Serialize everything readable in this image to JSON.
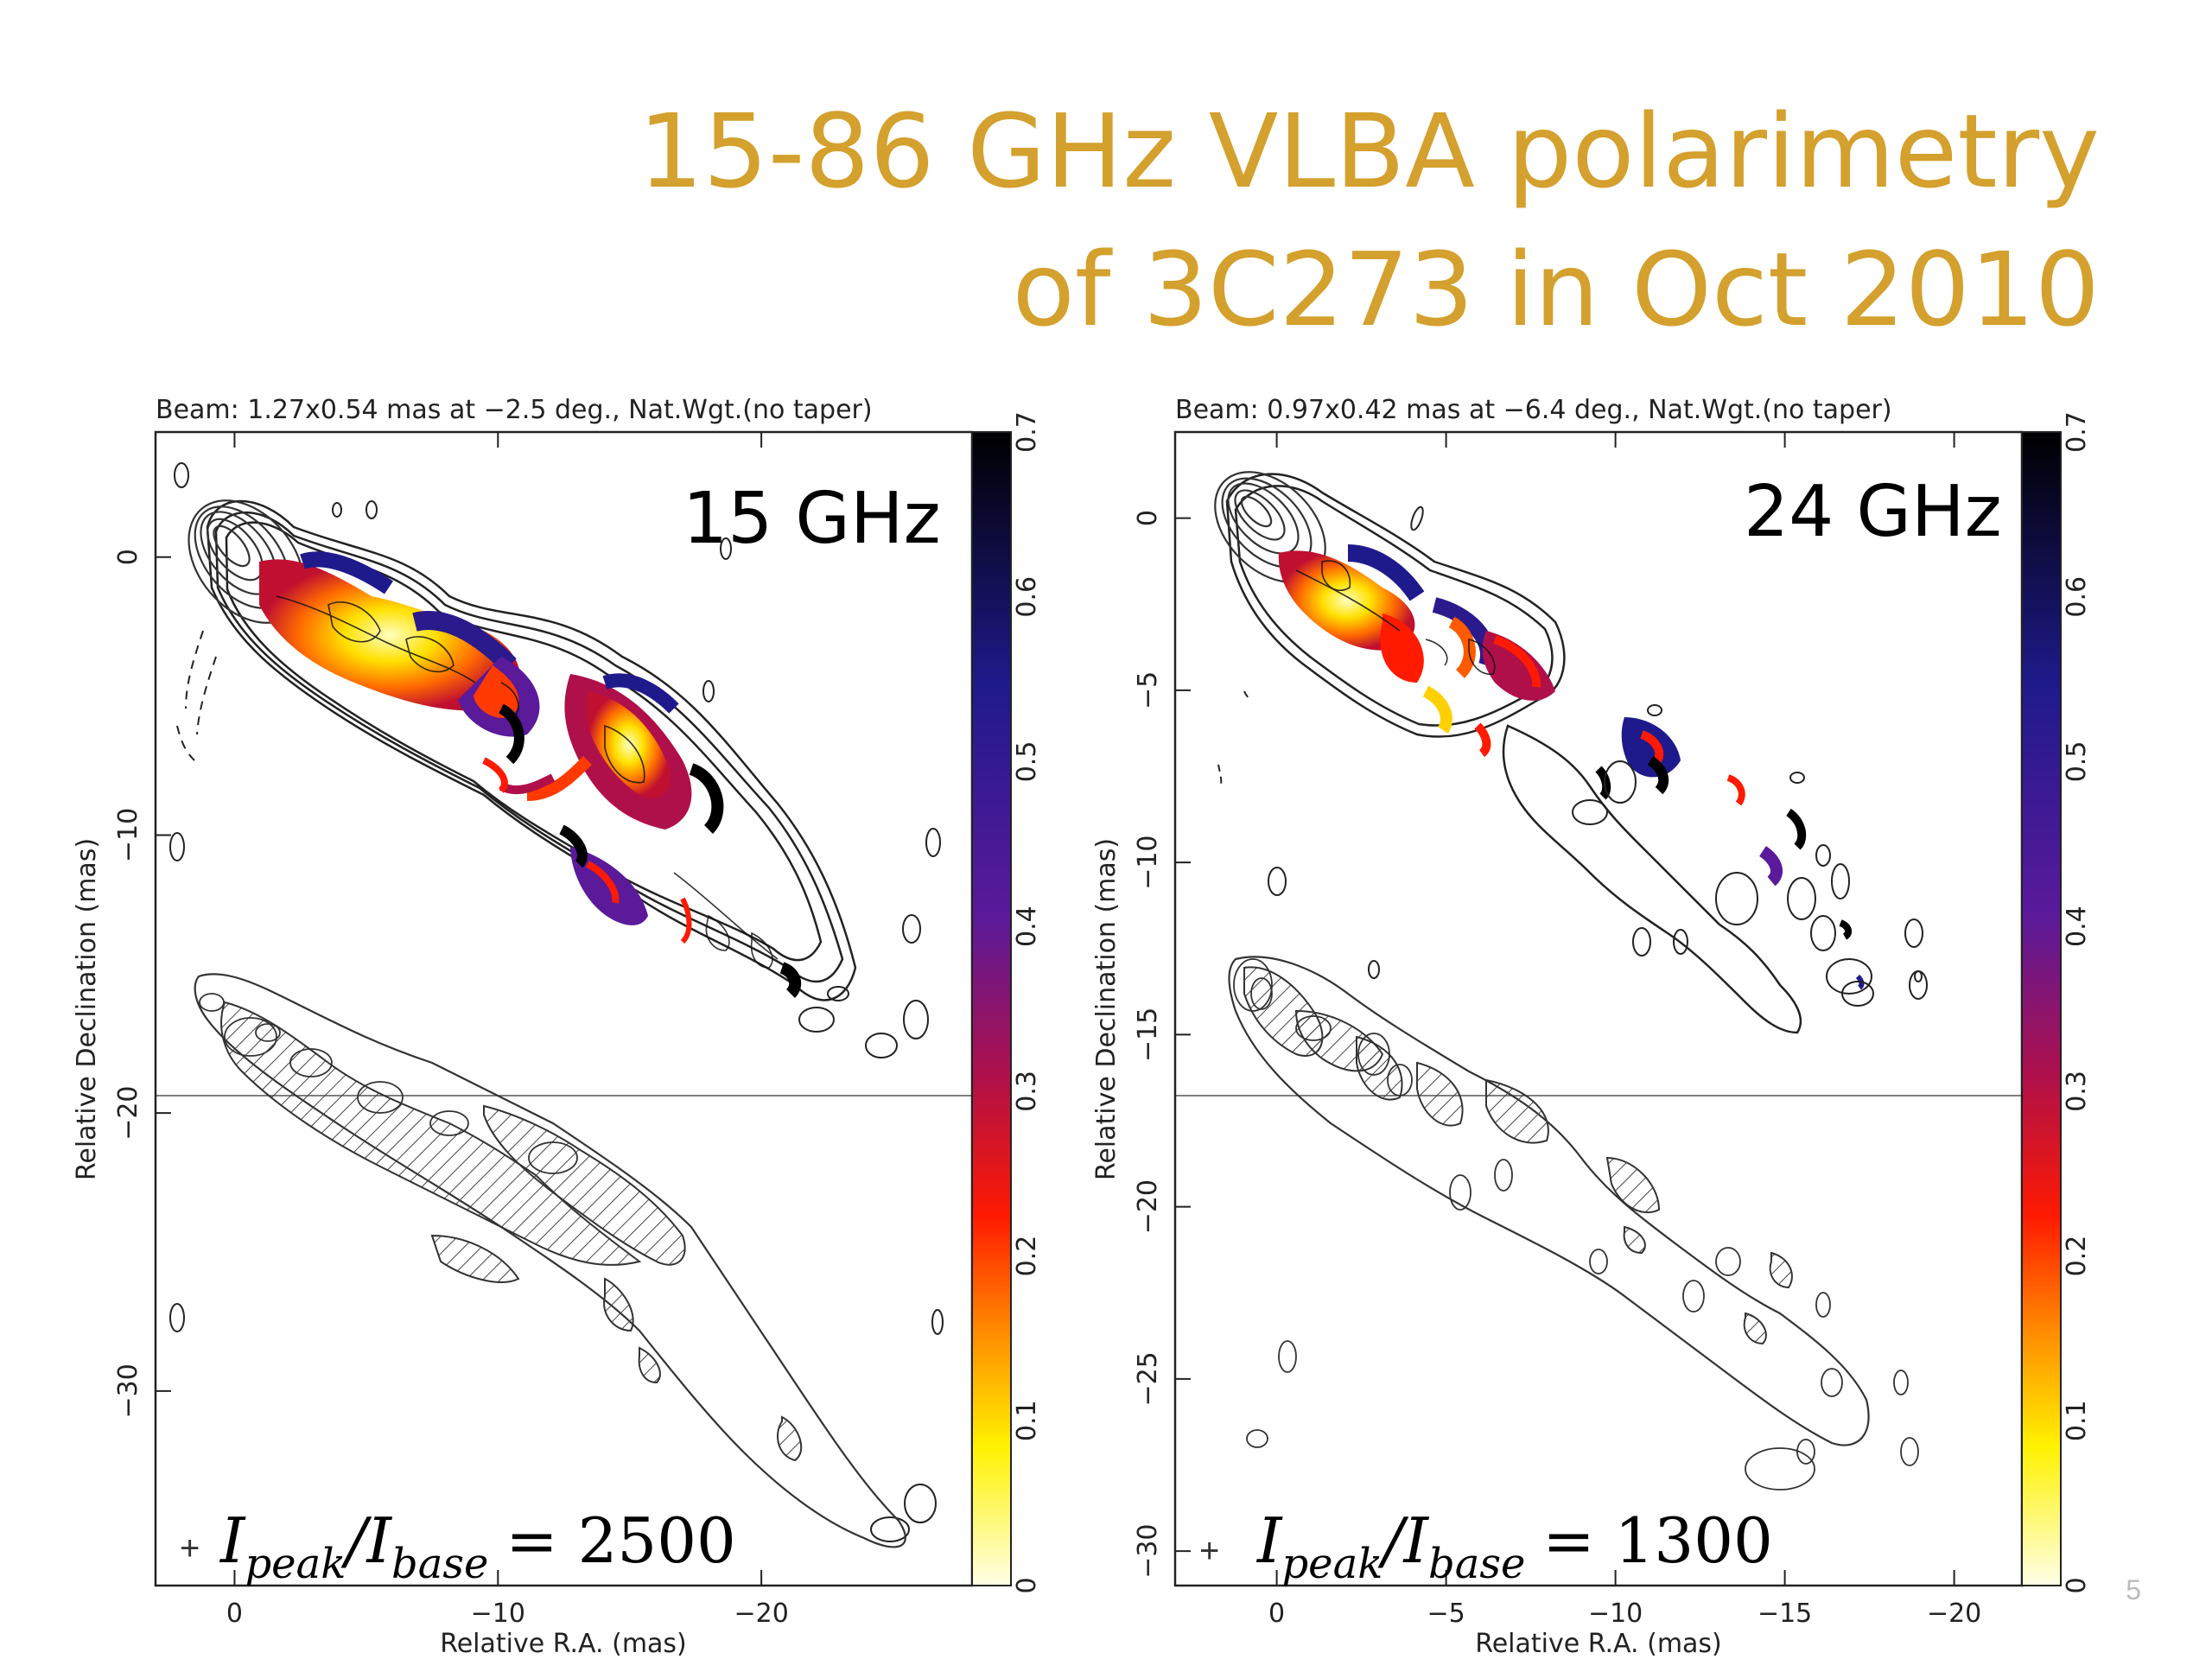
{
  "slide": {
    "title_line1": "15-86 GHz VLBA polarimetry",
    "title_line2": "of 3C273 in Oct 2010",
    "title_color": "#D4A02E",
    "page_number": "5"
  },
  "panels": [
    {
      "beam_text": "Beam: 1.27x0.54 mas at −2.5 deg., Nat.Wgt.(no taper)",
      "frequency_label": "15 GHz",
      "ratio_label": "I_peak/I_base = 2500",
      "ratio_lhs_a": "I",
      "ratio_sub_a": "peak",
      "ratio_lhs_b": "/I",
      "ratio_sub_b": "base",
      "ratio_rhs": "= 2500",
      "xlabel": "Relative R.A. (mas)",
      "ylabel": "Relative Declination (mas)",
      "x_ticks": [
        "0",
        "−10",
        "−20"
      ],
      "y_ticks": [
        "0",
        "−10",
        "−20",
        "−30"
      ],
      "colorbar_ticks": [
        "0",
        "0.1",
        "0.2",
        "0.3",
        "0.4",
        "0.5",
        "0.6",
        "0.7"
      ]
    },
    {
      "beam_text": "Beam: 0.97x0.42 mas at −6.4 deg., Nat.Wgt.(no taper)",
      "frequency_label": "24 GHz",
      "ratio_label": "I_peak/I_base = 1300",
      "ratio_lhs_a": "I",
      "ratio_sub_a": "peak",
      "ratio_lhs_b": "/I",
      "ratio_sub_b": "base",
      "ratio_rhs": "= 1300",
      "xlabel": "Relative R.A. (mas)",
      "ylabel": "Relative Declination (mas)",
      "x_ticks": [
        "0",
        "−5",
        "−10",
        "−15",
        "−20"
      ],
      "y_ticks": [
        "0",
        "−5",
        "−10",
        "−15",
        "−20",
        "−25",
        "−30"
      ],
      "colorbar_ticks": [
        "0",
        "0.1",
        "0.2",
        "0.3",
        "0.4",
        "0.5",
        "0.6",
        "0.7"
      ]
    }
  ],
  "chart_data": [
    {
      "type": "heatmap",
      "title": "15 GHz",
      "xlabel": "Relative R.A. (mas)",
      "ylabel": "Relative Declination (mas)",
      "xlim": [
        3,
        -28
      ],
      "ylim": [
        -37,
        4.5
      ],
      "colorbar_range": [
        0,
        0.7
      ],
      "colormap": [
        "#FFFFE8",
        "#FFF200",
        "#FF8C00",
        "#FF1A00",
        "#B0104A",
        "#5A1A9A",
        "#1F1A8C",
        "#000000"
      ]
    },
    {
      "type": "heatmap",
      "title": "24 GHz",
      "xlabel": "Relative R.A. (mas)",
      "ylabel": "Relative Declination (mas)",
      "xlim": [
        3,
        -22
      ],
      "ylim": [
        -31,
        2.5
      ],
      "colorbar_range": [
        0,
        0.7
      ],
      "colormap": [
        "#FFFFE8",
        "#FFF200",
        "#FF8C00",
        "#FF1A00",
        "#B0104A",
        "#5A1A9A",
        "#1F1A8C",
        "#000000"
      ]
    }
  ]
}
